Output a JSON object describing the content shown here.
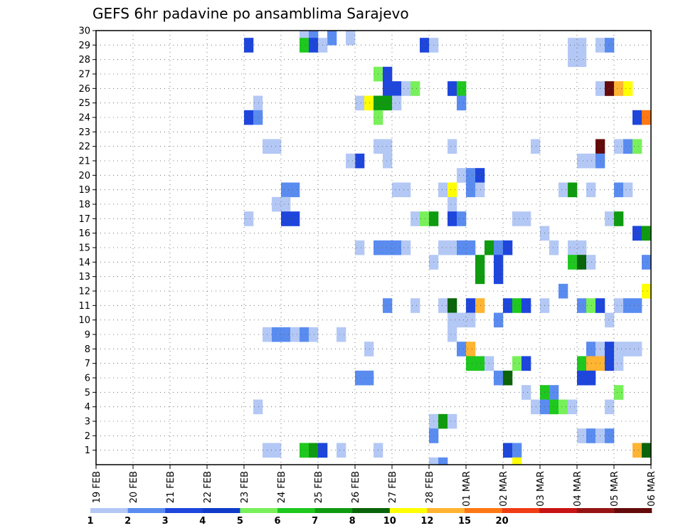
{
  "chart_data": {
    "type": "heatmap",
    "title": "GEFS 6hr padavine po ansamblima Sarajevo",
    "xlabel": "",
    "ylabel": "",
    "x_start": "19 FEB",
    "x_end": "06 MAR",
    "steps_per_day": 4,
    "x_tick_labels": [
      "19 FEB",
      "20 FEB",
      "21 FEB",
      "22 FEB",
      "23 FEB",
      "24 FEB",
      "25 FEB",
      "26 FEB",
      "27 FEB",
      "28 FEB",
      "01 MAR",
      "02 MAR",
      "03 MAR",
      "04 MAR",
      "05 MAR",
      "06 MAR"
    ],
    "y_tick_labels": [
      "1",
      "2",
      "3",
      "4",
      "5",
      "6",
      "7",
      "8",
      "9",
      "10",
      "11",
      "12",
      "13",
      "14",
      "15",
      "16",
      "17",
      "18",
      "19",
      "20",
      "21",
      "22",
      "23",
      "24",
      "25",
      "26",
      "27",
      "28",
      "29",
      "30"
    ],
    "ylim": [
      0,
      30
    ],
    "grid": true,
    "colorbar": {
      "position": "bottom",
      "labels": [
        "1",
        "2",
        "3",
        "4",
        "5",
        "6",
        "7",
        "8",
        "10",
        "12",
        "15",
        "20"
      ],
      "colors": [
        "#b4c8f5",
        "#5a8cf0",
        "#1e46dc",
        "#0f3cc8",
        "#78f05a",
        "#1ec81e",
        "#0f9b0f",
        "#0a640a",
        "#ffff00",
        "#ffb432",
        "#ff7814",
        "#f03c14",
        "#c81414",
        "#961414",
        "#640a0a"
      ]
    },
    "cells": [
      {
        "member": 30,
        "time": "24 FEB 12Z",
        "v": 1
      },
      {
        "member": 30,
        "time": "24 FEB 18Z",
        "v": 2
      },
      {
        "member": 30,
        "time": "25 FEB 06Z",
        "v": 2
      },
      {
        "member": 30,
        "time": "25 FEB 18Z",
        "v": 1
      },
      {
        "member": 29,
        "time": "23 FEB 00Z",
        "v": 3
      },
      {
        "member": 29,
        "time": "24 FEB 12Z",
        "v": 6
      },
      {
        "member": 29,
        "time": "24 FEB 18Z",
        "v": 3
      },
      {
        "member": 29,
        "time": "25 FEB 00Z",
        "v": 1
      },
      {
        "member": 29,
        "time": "27 FEB 18Z",
        "v": 3
      },
      {
        "member": 29,
        "time": "28 FEB 00Z",
        "v": 1
      },
      {
        "member": 29,
        "time": "03 MAR 18Z",
        "v": 1
      },
      {
        "member": 29,
        "time": "04 MAR 00Z",
        "v": 1
      },
      {
        "member": 29,
        "time": "04 MAR 12Z",
        "v": 1
      },
      {
        "member": 29,
        "time": "04 MAR 18Z",
        "v": 2
      },
      {
        "member": 28,
        "time": "03 MAR 18Z",
        "v": 1
      },
      {
        "member": 28,
        "time": "04 MAR 00Z",
        "v": 1
      },
      {
        "member": 27,
        "time": "26 FEB 12Z",
        "v": 5
      },
      {
        "member": 27,
        "time": "26 FEB 18Z",
        "v": 3
      },
      {
        "member": 26,
        "time": "28 FEB 12Z",
        "v": 3
      },
      {
        "member": 26,
        "time": "28 FEB 18Z",
        "v": 6
      },
      {
        "member": 26,
        "time": "26 FEB 18Z",
        "v": 3
      },
      {
        "member": 26,
        "time": "27 FEB 00Z",
        "v": 3
      },
      {
        "member": 26,
        "time": "27 FEB 06Z",
        "v": 1
      },
      {
        "member": 26,
        "time": "27 FEB 12Z",
        "v": 5
      },
      {
        "member": 26,
        "time": "04 MAR 12Z",
        "v": 1
      },
      {
        "member": 26,
        "time": "04 MAR 18Z",
        "v": 20
      },
      {
        "member": 26,
        "time": "05 MAR 00Z",
        "v": 12
      },
      {
        "member": 26,
        "time": "05 MAR 06Z",
        "v": 10
      },
      {
        "member": 25,
        "time": "23 FEB 06Z",
        "v": 1
      },
      {
        "member": 25,
        "time": "28 FEB 18Z",
        "v": 2
      },
      {
        "member": 25,
        "time": "26 FEB 00Z",
        "v": 1
      },
      {
        "member": 25,
        "time": "26 FEB 06Z",
        "v": 10
      },
      {
        "member": 25,
        "time": "26 FEB 12Z",
        "v": 7
      },
      {
        "member": 25,
        "time": "26 FEB 18Z",
        "v": 7
      },
      {
        "member": 25,
        "time": "27 FEB 00Z",
        "v": 1
      },
      {
        "member": 24,
        "time": "23 FEB 00Z",
        "v": 3
      },
      {
        "member": 24,
        "time": "23 FEB 06Z",
        "v": 2
      },
      {
        "member": 24,
        "time": "26 FEB 12Z",
        "v": 5
      },
      {
        "member": 24,
        "time": "05 MAR 12Z",
        "v": 3
      },
      {
        "member": 24,
        "time": "05 MAR 18Z",
        "v": 15
      },
      {
        "member": 22,
        "time": "23 FEB 12Z",
        "v": 1
      },
      {
        "member": 22,
        "time": "23 FEB 18Z",
        "v": 1
      },
      {
        "member": 22,
        "time": "28 FEB 12Z",
        "v": 1
      },
      {
        "member": 22,
        "time": "26 FEB 12Z",
        "v": 1
      },
      {
        "member": 22,
        "time": "26 FEB 18Z",
        "v": 1
      },
      {
        "member": 22,
        "time": "02 MAR 18Z",
        "v": 1
      },
      {
        "member": 22,
        "time": "04 MAR 12Z",
        "v": 20
      },
      {
        "member": 22,
        "time": "05 MAR 00Z",
        "v": 1
      },
      {
        "member": 22,
        "time": "05 MAR 06Z",
        "v": 2
      },
      {
        "member": 22,
        "time": "05 MAR 12Z",
        "v": 5
      },
      {
        "member": 21,
        "time": "26 FEB 00Z",
        "v": 3
      },
      {
        "member": 21,
        "time": "25 FEB 18Z",
        "v": 1
      },
      {
        "member": 21,
        "time": "26 FEB 18Z",
        "v": 1
      },
      {
        "member": 21,
        "time": "04 MAR 00Z",
        "v": 1
      },
      {
        "member": 21,
        "time": "04 MAR 06Z",
        "v": 1
      },
      {
        "member": 21,
        "time": "04 MAR 12Z",
        "v": 2
      },
      {
        "member": 20,
        "time": "28 FEB 18Z",
        "v": 1
      },
      {
        "member": 20,
        "time": "01 MAR 00Z",
        "v": 2
      },
      {
        "member": 20,
        "time": "01 MAR 06Z",
        "v": 3
      },
      {
        "member": 19,
        "time": "24 FEB 00Z",
        "v": 2
      },
      {
        "member": 19,
        "time": "24 FEB 06Z",
        "v": 2
      },
      {
        "member": 19,
        "time": "27 FEB 00Z",
        "v": 1
      },
      {
        "member": 19,
        "time": "27 FEB 06Z",
        "v": 1
      },
      {
        "member": 19,
        "time": "28 FEB 06Z",
        "v": 1
      },
      {
        "member": 19,
        "time": "28 FEB 12Z",
        "v": 10
      },
      {
        "member": 19,
        "time": "01 MAR 00Z",
        "v": 2
      },
      {
        "member": 19,
        "time": "01 MAR 06Z",
        "v": 1
      },
      {
        "member": 19,
        "time": "03 MAR 12Z",
        "v": 1
      },
      {
        "member": 19,
        "time": "03 MAR 18Z",
        "v": 7
      },
      {
        "member": 19,
        "time": "04 MAR 06Z",
        "v": 1
      },
      {
        "member": 19,
        "time": "05 MAR 00Z",
        "v": 2
      },
      {
        "member": 19,
        "time": "05 MAR 06Z",
        "v": 1
      },
      {
        "member": 18,
        "time": "23 FEB 18Z",
        "v": 1
      },
      {
        "member": 18,
        "time": "24 FEB 00Z",
        "v": 1
      },
      {
        "member": 18,
        "time": "28 FEB 12Z",
        "v": 1
      },
      {
        "member": 17,
        "time": "23 FEB 00Z",
        "v": 1
      },
      {
        "member": 17,
        "time": "24 FEB 00Z",
        "v": 3
      },
      {
        "member": 17,
        "time": "24 FEB 06Z",
        "v": 3
      },
      {
        "member": 17,
        "time": "27 FEB 12Z",
        "v": 1
      },
      {
        "member": 17,
        "time": "27 FEB 18Z",
        "v": 5
      },
      {
        "member": 17,
        "time": "28 FEB 00Z",
        "v": 7
      },
      {
        "member": 17,
        "time": "28 FEB 12Z",
        "v": 3
      },
      {
        "member": 17,
        "time": "28 FEB 18Z",
        "v": 2
      },
      {
        "member": 17,
        "time": "02 MAR 06Z",
        "v": 1
      },
      {
        "member": 17,
        "time": "02 MAR 12Z",
        "v": 1
      },
      {
        "member": 17,
        "time": "04 MAR 18Z",
        "v": 1
      },
      {
        "member": 17,
        "time": "05 MAR 00Z",
        "v": 7
      },
      {
        "member": 16,
        "time": "03 MAR 00Z",
        "v": 1
      },
      {
        "member": 16,
        "time": "05 MAR 12Z",
        "v": 3
      },
      {
        "member": 16,
        "time": "05 MAR 18Z",
        "v": 7
      },
      {
        "member": 15,
        "time": "26 FEB 00Z",
        "v": 1
      },
      {
        "member": 15,
        "time": "26 FEB 12Z",
        "v": 2
      },
      {
        "member": 15,
        "time": "26 FEB 18Z",
        "v": 2
      },
      {
        "member": 15,
        "time": "27 FEB 00Z",
        "v": 2
      },
      {
        "member": 15,
        "time": "27 FEB 06Z",
        "v": 1
      },
      {
        "member": 15,
        "time": "28 FEB 06Z",
        "v": 1
      },
      {
        "member": 15,
        "time": "28 FEB 12Z",
        "v": 1
      },
      {
        "member": 15,
        "time": "28 FEB 18Z",
        "v": 2
      },
      {
        "member": 15,
        "time": "01 MAR 00Z",
        "v": 2
      },
      {
        "member": 15,
        "time": "01 MAR 12Z",
        "v": 7
      },
      {
        "member": 15,
        "time": "01 MAR 18Z",
        "v": 2
      },
      {
        "member": 15,
        "time": "02 MAR 00Z",
        "v": 3
      },
      {
        "member": 15,
        "time": "03 MAR 06Z",
        "v": 1
      },
      {
        "member": 15,
        "time": "03 MAR 18Z",
        "v": 1
      },
      {
        "member": 15,
        "time": "04 MAR 00Z",
        "v": 1
      },
      {
        "member": 14,
        "time": "28 FEB 00Z",
        "v": 1
      },
      {
        "member": 14,
        "time": "01 MAR 06Z",
        "v": 7
      },
      {
        "member": 14,
        "time": "01 MAR 18Z",
        "v": 3
      },
      {
        "member": 14,
        "time": "03 MAR 18Z",
        "v": 6
      },
      {
        "member": 14,
        "time": "04 MAR 00Z",
        "v": 8
      },
      {
        "member": 14,
        "time": "04 MAR 06Z",
        "v": 1
      },
      {
        "member": 14,
        "time": "05 MAR 18Z",
        "v": 2
      },
      {
        "member": 13,
        "time": "01 MAR 06Z",
        "v": 7
      },
      {
        "member": 13,
        "time": "01 MAR 18Z",
        "v": 3
      },
      {
        "member": 12,
        "time": "03 MAR 12Z",
        "v": 2
      },
      {
        "member": 12,
        "time": "05 MAR 18Z",
        "v": 10
      },
      {
        "member": 11,
        "time": "26 FEB 18Z",
        "v": 2
      },
      {
        "member": 11,
        "time": "27 FEB 12Z",
        "v": 1
      },
      {
        "member": 11,
        "time": "28 FEB 06Z",
        "v": 1
      },
      {
        "member": 11,
        "time": "28 FEB 12Z",
        "v": 8
      },
      {
        "member": 11,
        "time": "01 MAR 00Z",
        "v": 3
      },
      {
        "member": 11,
        "time": "01 MAR 06Z",
        "v": 12
      },
      {
        "member": 11,
        "time": "02 MAR 00Z",
        "v": 3
      },
      {
        "member": 11,
        "time": "02 MAR 06Z",
        "v": 6
      },
      {
        "member": 11,
        "time": "02 MAR 12Z",
        "v": 3
      },
      {
        "member": 11,
        "time": "03 MAR 00Z",
        "v": 1
      },
      {
        "member": 11,
        "time": "04 MAR 00Z",
        "v": 2
      },
      {
        "member": 11,
        "time": "04 MAR 06Z",
        "v": 5
      },
      {
        "member": 11,
        "time": "04 MAR 12Z",
        "v": 3
      },
      {
        "member": 11,
        "time": "05 MAR 00Z",
        "v": 1
      },
      {
        "member": 11,
        "time": "05 MAR 06Z",
        "v": 2
      },
      {
        "member": 11,
        "time": "05 MAR 12Z",
        "v": 2
      },
      {
        "member": 10,
        "time": "28 FEB 12Z",
        "v": 1
      },
      {
        "member": 10,
        "time": "28 FEB 18Z",
        "v": 1
      },
      {
        "member": 10,
        "time": "01 MAR 00Z",
        "v": 1
      },
      {
        "member": 10,
        "time": "01 MAR 18Z",
        "v": 2
      },
      {
        "member": 10,
        "time": "04 MAR 18Z",
        "v": 1
      },
      {
        "member": 9,
        "time": "23 FEB 12Z",
        "v": 1
      },
      {
        "member": 9,
        "time": "23 FEB 18Z",
        "v": 2
      },
      {
        "member": 9,
        "time": "24 FEB 00Z",
        "v": 2
      },
      {
        "member": 9,
        "time": "24 FEB 06Z",
        "v": 1
      },
      {
        "member": 9,
        "time": "24 FEB 12Z",
        "v": 2
      },
      {
        "member": 9,
        "time": "24 FEB 18Z",
        "v": 1
      },
      {
        "member": 9,
        "time": "25 FEB 12Z",
        "v": 1
      },
      {
        "member": 9,
        "time": "28 FEB 12Z",
        "v": 1
      },
      {
        "member": 8,
        "time": "26 FEB 06Z",
        "v": 1
      },
      {
        "member": 8,
        "time": "28 FEB 18Z",
        "v": 2
      },
      {
        "member": 8,
        "time": "01 MAR 00Z",
        "v": 12
      },
      {
        "member": 8,
        "time": "04 MAR 06Z",
        "v": 2
      },
      {
        "member": 8,
        "time": "04 MAR 12Z",
        "v": 1
      },
      {
        "member": 8,
        "time": "04 MAR 18Z",
        "v": 3
      },
      {
        "member": 8,
        "time": "05 MAR 00Z",
        "v": 1
      },
      {
        "member": 8,
        "time": "05 MAR 06Z",
        "v": 1
      },
      {
        "member": 8,
        "time": "05 MAR 12Z",
        "v": 1
      },
      {
        "member": 7,
        "time": "01 MAR 00Z",
        "v": 6
      },
      {
        "member": 7,
        "time": "01 MAR 06Z",
        "v": 6
      },
      {
        "member": 7,
        "time": "01 MAR 12Z",
        "v": 1
      },
      {
        "member": 7,
        "time": "02 MAR 06Z",
        "v": 5
      },
      {
        "member": 7,
        "time": "02 MAR 12Z",
        "v": 3
      },
      {
        "member": 7,
        "time": "04 MAR 00Z",
        "v": 6
      },
      {
        "member": 7,
        "time": "04 MAR 06Z",
        "v": 12
      },
      {
        "member": 7,
        "time": "04 MAR 12Z",
        "v": 12
      },
      {
        "member": 7,
        "time": "04 MAR 18Z",
        "v": 3
      },
      {
        "member": 7,
        "time": "05 MAR 00Z",
        "v": 1
      },
      {
        "member": 6,
        "time": "26 FEB 00Z",
        "v": 2
      },
      {
        "member": 6,
        "time": "26 FEB 06Z",
        "v": 2
      },
      {
        "member": 6,
        "time": "01 MAR 18Z",
        "v": 2
      },
      {
        "member": 6,
        "time": "02 MAR 00Z",
        "v": 8
      },
      {
        "member": 6,
        "time": "04 MAR 00Z",
        "v": 3
      },
      {
        "member": 6,
        "time": "04 MAR 06Z",
        "v": 3
      },
      {
        "member": 5,
        "time": "02 MAR 12Z",
        "v": 1
      },
      {
        "member": 5,
        "time": "03 MAR 00Z",
        "v": 6
      },
      {
        "member": 5,
        "time": "03 MAR 06Z",
        "v": 2
      },
      {
        "member": 5,
        "time": "05 MAR 00Z",
        "v": 5
      },
      {
        "member": 4,
        "time": "23 FEB 06Z",
        "v": 1
      },
      {
        "member": 4,
        "time": "02 MAR 18Z",
        "v": 1
      },
      {
        "member": 4,
        "time": "03 MAR 00Z",
        "v": 2
      },
      {
        "member": 4,
        "time": "03 MAR 06Z",
        "v": 6
      },
      {
        "member": 4,
        "time": "03 MAR 12Z",
        "v": 5
      },
      {
        "member": 4,
        "time": "03 MAR 18Z",
        "v": 1
      },
      {
        "member": 4,
        "time": "04 MAR 18Z",
        "v": 1
      },
      {
        "member": 3,
        "time": "28 FEB 00Z",
        "v": 1
      },
      {
        "member": 3,
        "time": "28 FEB 06Z",
        "v": 7
      },
      {
        "member": 3,
        "time": "28 FEB 12Z",
        "v": 1
      },
      {
        "member": 2,
        "time": "28 FEB 00Z",
        "v": 2
      },
      {
        "member": 2,
        "time": "04 MAR 00Z",
        "v": 1
      },
      {
        "member": 2,
        "time": "04 MAR 06Z",
        "v": 2
      },
      {
        "member": 2,
        "time": "04 MAR 12Z",
        "v": 1
      },
      {
        "member": 2,
        "time": "04 MAR 18Z",
        "v": 2
      },
      {
        "member": 1,
        "time": "23 FEB 12Z",
        "v": 1
      },
      {
        "member": 1,
        "time": "23 FEB 18Z",
        "v": 1
      },
      {
        "member": 1,
        "time": "24 FEB 12Z",
        "v": 6
      },
      {
        "member": 1,
        "time": "24 FEB 18Z",
        "v": 7
      },
      {
        "member": 1,
        "time": "25 FEB 00Z",
        "v": 3
      },
      {
        "member": 1,
        "time": "25 FEB 12Z",
        "v": 1
      },
      {
        "member": 1,
        "time": "26 FEB 12Z",
        "v": 1
      },
      {
        "member": 1,
        "time": "02 MAR 00Z",
        "v": 3
      },
      {
        "member": 1,
        "time": "02 MAR 06Z",
        "v": 2
      },
      {
        "member": 1,
        "time": "05 MAR 12Z",
        "v": 12
      },
      {
        "member": 1,
        "time": "05 MAR 18Z",
        "v": 8
      },
      {
        "member": 0,
        "time": "28 FEB 00Z",
        "v": 1
      },
      {
        "member": 0,
        "time": "28 FEB 06Z",
        "v": 2
      },
      {
        "member": 0,
        "time": "02 MAR 06Z",
        "v": 10
      }
    ]
  }
}
